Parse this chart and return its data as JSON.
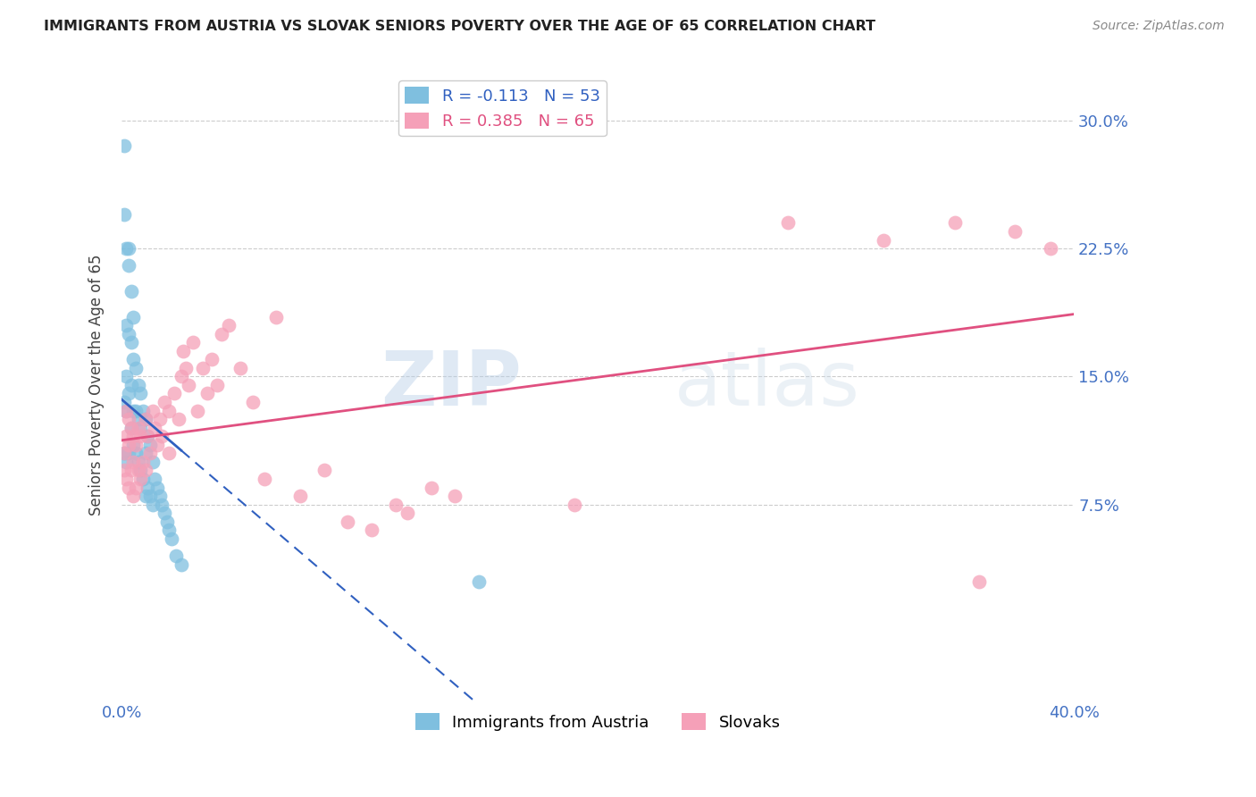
{
  "title": "IMMIGRANTS FROM AUSTRIA VS SLOVAK SENIORS POVERTY OVER THE AGE OF 65 CORRELATION CHART",
  "source": "Source: ZipAtlas.com",
  "ylabel_label": "Seniors Poverty Over the Age of 65",
  "xlim": [
    0.0,
    0.4
  ],
  "ylim": [
    -0.04,
    0.33
  ],
  "austria_color": "#7fbfdf",
  "slovak_color": "#f5a0b8",
  "austria_line_color": "#3060c0",
  "slovak_line_color": "#e05080",
  "austria_R": -0.113,
  "austria_N": 53,
  "slovak_R": 0.385,
  "slovak_N": 65,
  "legend_label_austria": "Immigrants from Austria",
  "legend_label_slovak": "Slovaks",
  "tick_color": "#4472c4",
  "title_color": "#222222",
  "source_color": "#888888",
  "watermark": "ZIPatlas",
  "austria_x": [
    0.001,
    0.001,
    0.001,
    0.001,
    0.002,
    0.002,
    0.002,
    0.002,
    0.002,
    0.003,
    0.003,
    0.003,
    0.003,
    0.003,
    0.004,
    0.004,
    0.004,
    0.004,
    0.005,
    0.005,
    0.005,
    0.005,
    0.006,
    0.006,
    0.006,
    0.007,
    0.007,
    0.007,
    0.008,
    0.008,
    0.008,
    0.009,
    0.009,
    0.01,
    0.01,
    0.01,
    0.011,
    0.011,
    0.012,
    0.012,
    0.013,
    0.013,
    0.014,
    0.015,
    0.016,
    0.017,
    0.018,
    0.019,
    0.02,
    0.021,
    0.023,
    0.15,
    0.025
  ],
  "austria_y": [
    0.285,
    0.245,
    0.135,
    0.105,
    0.225,
    0.18,
    0.15,
    0.13,
    0.1,
    0.225,
    0.215,
    0.175,
    0.14,
    0.105,
    0.2,
    0.17,
    0.145,
    0.12,
    0.185,
    0.16,
    0.13,
    0.11,
    0.155,
    0.13,
    0.105,
    0.145,
    0.125,
    0.1,
    0.14,
    0.12,
    0.095,
    0.13,
    0.09,
    0.125,
    0.105,
    0.08,
    0.115,
    0.085,
    0.11,
    0.08,
    0.1,
    0.075,
    0.09,
    0.085,
    0.08,
    0.075,
    0.07,
    0.065,
    0.06,
    0.055,
    0.045,
    0.03,
    0.04
  ],
  "slovak_x": [
    0.001,
    0.001,
    0.002,
    0.002,
    0.002,
    0.003,
    0.003,
    0.003,
    0.004,
    0.004,
    0.005,
    0.005,
    0.005,
    0.006,
    0.006,
    0.007,
    0.007,
    0.008,
    0.008,
    0.009,
    0.01,
    0.01,
    0.011,
    0.012,
    0.013,
    0.014,
    0.015,
    0.016,
    0.017,
    0.018,
    0.02,
    0.02,
    0.022,
    0.024,
    0.025,
    0.026,
    0.027,
    0.028,
    0.03,
    0.032,
    0.034,
    0.036,
    0.038,
    0.04,
    0.042,
    0.045,
    0.05,
    0.055,
    0.06,
    0.065,
    0.075,
    0.085,
    0.095,
    0.105,
    0.115,
    0.12,
    0.13,
    0.14,
    0.19,
    0.28,
    0.32,
    0.35,
    0.36,
    0.375,
    0.39
  ],
  "slovak_y": [
    0.105,
    0.095,
    0.13,
    0.115,
    0.09,
    0.125,
    0.11,
    0.085,
    0.12,
    0.095,
    0.115,
    0.1,
    0.08,
    0.11,
    0.085,
    0.12,
    0.095,
    0.115,
    0.09,
    0.1,
    0.125,
    0.095,
    0.115,
    0.105,
    0.13,
    0.12,
    0.11,
    0.125,
    0.115,
    0.135,
    0.13,
    0.105,
    0.14,
    0.125,
    0.15,
    0.165,
    0.155,
    0.145,
    0.17,
    0.13,
    0.155,
    0.14,
    0.16,
    0.145,
    0.175,
    0.18,
    0.155,
    0.135,
    0.09,
    0.185,
    0.08,
    0.095,
    0.065,
    0.06,
    0.075,
    0.07,
    0.085,
    0.08,
    0.075,
    0.24,
    0.23,
    0.24,
    0.03,
    0.235,
    0.225
  ]
}
